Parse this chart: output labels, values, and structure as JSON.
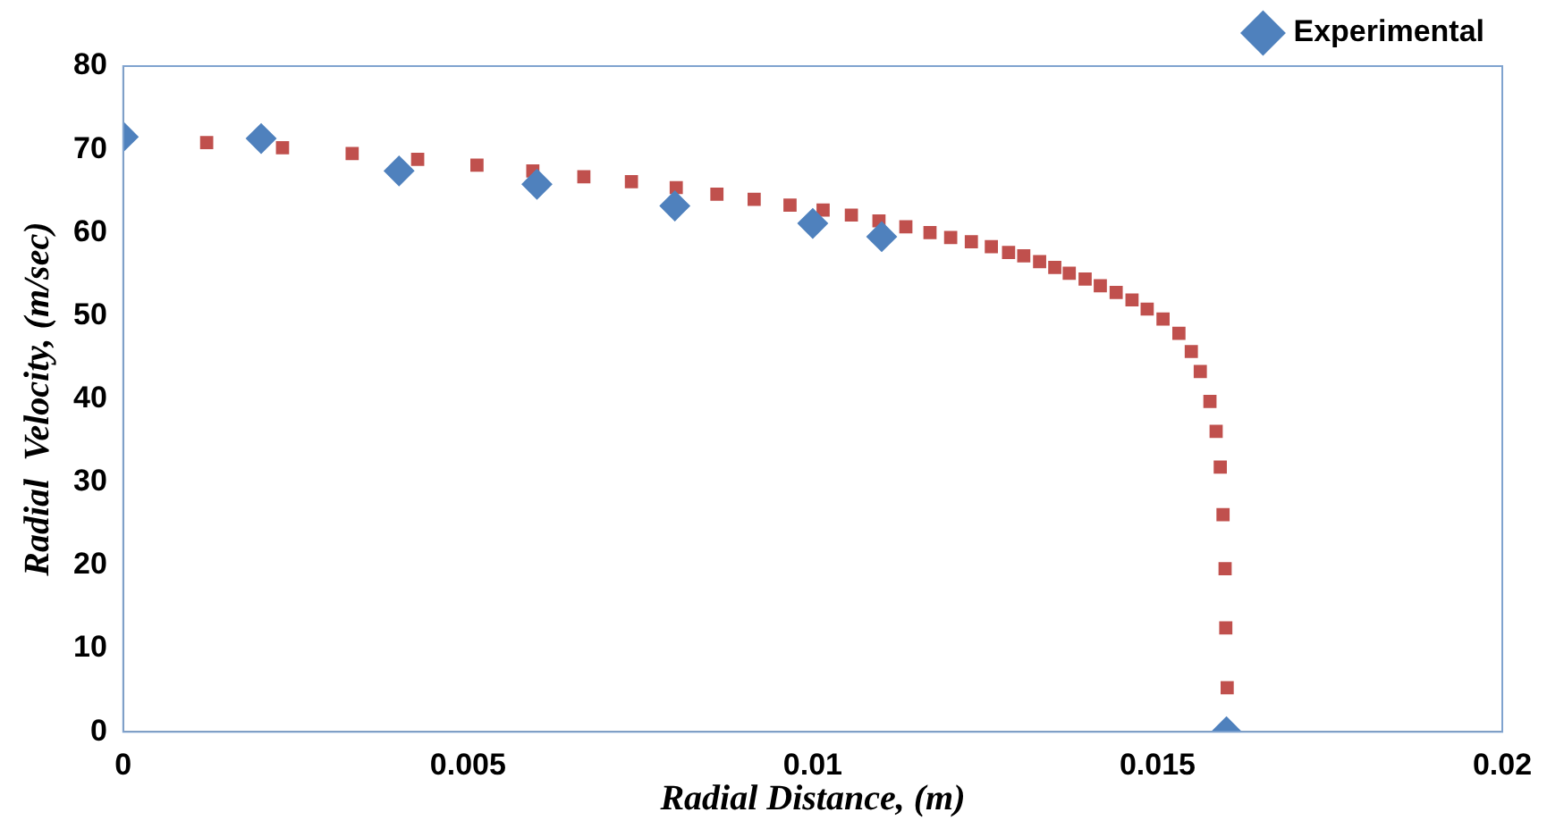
{
  "chart_data": {
    "type": "scatter",
    "xlabel": "Radial Distance, (m)",
    "ylabel": "Radial  Velocity, (m/sec)",
    "xlim": [
      0,
      0.02
    ],
    "xticks": [
      0,
      0.005,
      0.01,
      0.015,
      0.02
    ],
    "ylim": [
      0,
      80
    ],
    "yticks": [
      0,
      10,
      20,
      30,
      40,
      50,
      60,
      70,
      80
    ],
    "grid": false,
    "legend": "top right",
    "series": [
      {
        "name": "Experimental",
        "color": "#4f81bd",
        "marker": "diamond",
        "x": [
          0,
          0.002,
          0.004,
          0.006,
          0.008,
          0.01,
          0.011,
          0.016
        ],
        "values": [
          71.5,
          71.3,
          67.4,
          65.8,
          63.2,
          61.1,
          59.5,
          0
        ]
      },
      {
        "color": "#c0504d",
        "marker": "square",
        "x": [
          0.00121,
          0.00231,
          0.00332,
          0.00427,
          0.00513,
          0.00594,
          0.00668,
          0.00737,
          0.00802,
          0.00861,
          0.00915,
          0.00967,
          0.01015,
          0.01056,
          0.01096,
          0.01135,
          0.0117,
          0.012,
          0.0123,
          0.01259,
          0.01284,
          0.01306,
          0.01329,
          0.01351,
          0.01372,
          0.01395,
          0.01417,
          0.0144,
          0.01463,
          0.01485,
          0.01508,
          0.01531,
          0.01549,
          0.01562,
          0.01576,
          0.01585,
          0.01591,
          0.01595,
          0.01598,
          0.01599,
          0.01601
        ],
        "values": [
          70.8,
          70.2,
          69.5,
          68.8,
          68.1,
          67.4,
          66.7,
          66.1,
          65.4,
          64.6,
          64.0,
          63.3,
          62.7,
          62.1,
          61.4,
          60.7,
          60.0,
          59.4,
          58.9,
          58.3,
          57.6,
          57.2,
          56.5,
          55.8,
          55.1,
          54.4,
          53.6,
          52.8,
          51.9,
          50.8,
          49.6,
          47.9,
          45.7,
          43.3,
          39.7,
          36.1,
          31.8,
          26.1,
          19.6,
          12.5,
          5.3
        ]
      }
    ]
  }
}
